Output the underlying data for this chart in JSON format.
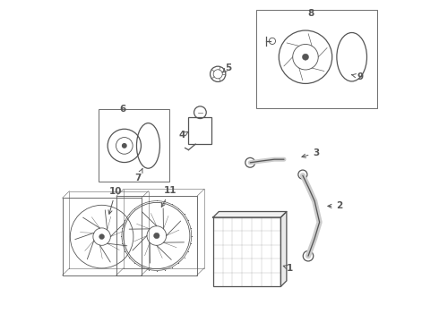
{
  "bg_color": "#ffffff",
  "line_color": "#555555",
  "fig_width": 4.9,
  "fig_height": 3.6,
  "dpi": 100,
  "lw_thin": 0.6,
  "lw_med": 0.9,
  "fs_label": 7.5
}
